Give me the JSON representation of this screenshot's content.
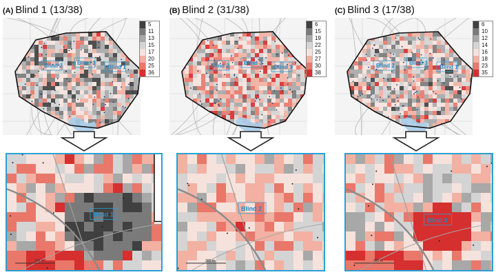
{
  "panels": [
    {
      "letter": "(A)",
      "title": "Blind 1 (13/38)",
      "legend": [
        "5",
        "11",
        "13",
        "15",
        "17",
        "20",
        "25",
        "36"
      ],
      "legend_colors": [
        "#404040",
        "#7a7a7a",
        "#a8a8a8",
        "#d4d4d4",
        "#f6e2dc",
        "#f2b1a2",
        "#e9776a",
        "#d62f2f"
      ],
      "map_labels": [
        "Blind 2",
        "Blind 3",
        "Blind 1"
      ],
      "zoom_label": "Blind 1",
      "scale_label": "300 m"
    },
    {
      "letter": "(B)",
      "title": "Blind 2 (31/38)",
      "legend": [
        "6",
        "15",
        "19",
        "22",
        "25",
        "27",
        "30",
        "38"
      ],
      "legend_colors": [
        "#404040",
        "#7a7a7a",
        "#a8a8a8",
        "#d4d4d4",
        "#f6e2dc",
        "#f2b1a2",
        "#e9776a",
        "#d62f2f"
      ],
      "map_labels": [
        "Blind 2",
        "Blind 3",
        "Blind 1"
      ],
      "zoom_label": "Blind 2",
      "scale_label": "300 m"
    },
    {
      "letter": "(C)",
      "title": "Blind 3 (17/38)",
      "legend": [
        "6",
        "10",
        "12",
        "14",
        "16",
        "18",
        "23",
        "35"
      ],
      "legend_colors": [
        "#404040",
        "#7a7a7a",
        "#a8a8a8",
        "#d4d4d4",
        "#f6e2dc",
        "#f2b1a2",
        "#e9776a",
        "#d62f2f"
      ],
      "map_labels": [
        "Blind 2",
        "Blind 3",
        "Blind 1"
      ],
      "zoom_label": "Blind 3",
      "scale_label": "300 m"
    }
  ]
}
